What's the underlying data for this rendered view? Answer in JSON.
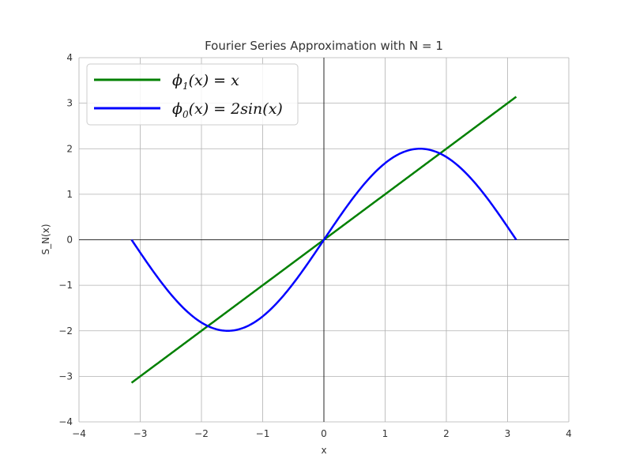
{
  "chart_data": {
    "type": "line",
    "title": "Fourier Series Approximation with N = 1",
    "xlabel": "x",
    "ylabel": "S_N(x)",
    "xlim": [
      -4,
      4
    ],
    "ylim": [
      -4,
      4
    ],
    "xticks": [
      "−4",
      "−3",
      "−2",
      "−1",
      "0",
      "1",
      "2",
      "3",
      "4"
    ],
    "yticks": [
      "−4",
      "−3",
      "−2",
      "−1",
      "0",
      "1",
      "2",
      "3",
      "4"
    ],
    "grid": true,
    "legend_position": "top-left",
    "series": [
      {
        "name": "ϕ₁(x) = x",
        "legend_main": "ϕ",
        "legend_sub": "1",
        "legend_rest": "(x) = x",
        "color": "#008000",
        "function": "x",
        "x_range": [
          -3.14159,
          3.14159
        ]
      },
      {
        "name": "ϕ₀(x) = 2sin(x)",
        "legend_main": "ϕ",
        "legend_sub": "0",
        "legend_rest": "(x) = 2sin(x)",
        "color": "#0000ff",
        "function": "2sin(x)",
        "x_range": [
          -3.14159,
          3.14159
        ]
      }
    ]
  }
}
